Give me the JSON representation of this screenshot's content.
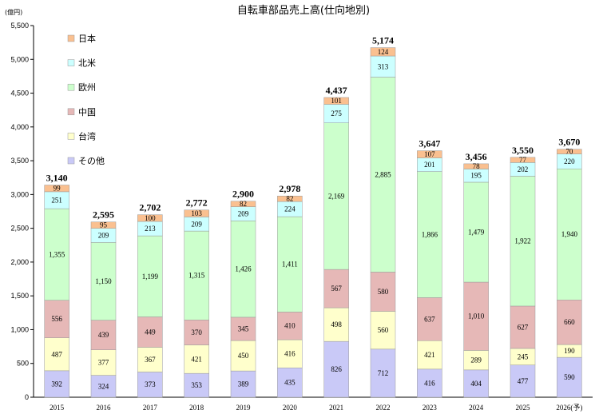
{
  "chart_data": {
    "type": "bar",
    "stacked": true,
    "title": "自転車部品売上高(仕向地別)",
    "unit": "(億円)",
    "categories": [
      "2015",
      "2016",
      "2017",
      "2018",
      "2019",
      "2020",
      "2021",
      "2022",
      "2023",
      "2024",
      "2025",
      "2026(予)"
    ],
    "ylim": [
      0,
      5500
    ],
    "yticks": [
      0,
      500,
      1000,
      1500,
      2000,
      2500,
      3000,
      3500,
      4000,
      4500,
      5000,
      5500
    ],
    "ytick_labels": [
      "0",
      "500",
      "1,000",
      "1,500",
      "2,000",
      "2,500",
      "3,000",
      "3,500",
      "4,000",
      "4,500",
      "5,000",
      "5,500"
    ],
    "legend_position": "top-left",
    "series": [
      {
        "name": "その他",
        "color": "#c9c9f7",
        "values": [
          392,
          324,
          373,
          353,
          389,
          435,
          826,
          712,
          416,
          404,
          477,
          590
        ],
        "labels": [
          "392",
          "324",
          "373",
          "353",
          "389",
          "435",
          "826",
          "712",
          "416",
          "404",
          "477",
          "590"
        ]
      },
      {
        "name": "台湾",
        "color": "#ffffcc",
        "values": [
          487,
          377,
          367,
          421,
          450,
          416,
          498,
          560,
          421,
          289,
          245,
          190
        ],
        "labels": [
          "487",
          "377",
          "367",
          "421",
          "450",
          "416",
          "498",
          "560",
          "421",
          "289",
          "245",
          "190"
        ]
      },
      {
        "name": "中国",
        "color": "#e6b8b7",
        "values": [
          556,
          439,
          449,
          370,
          345,
          410,
          567,
          580,
          637,
          1010,
          627,
          660
        ],
        "labels": [
          "556",
          "439",
          "449",
          "370",
          "345",
          "410",
          "567",
          "580",
          "637",
          "1,010",
          "627",
          "660"
        ]
      },
      {
        "name": "欧州",
        "color": "#ccffcc",
        "values": [
          1355,
          1150,
          1199,
          1315,
          1426,
          1411,
          2169,
          2885,
          1866,
          1479,
          1922,
          1940
        ],
        "labels": [
          "1,355",
          "1,150",
          "1,199",
          "1,315",
          "1,426",
          "1,411",
          "2,169",
          "2,885",
          "1,866",
          "1,479",
          "1,922",
          "1,940"
        ]
      },
      {
        "name": "北米",
        "color": "#ccffff",
        "values": [
          251,
          209,
          213,
          209,
          209,
          224,
          275,
          313,
          201,
          195,
          202,
          220
        ],
        "labels": [
          "251",
          "209",
          "213",
          "209",
          "209",
          "224",
          "275",
          "313",
          "201",
          "195",
          "202",
          "220"
        ]
      },
      {
        "name": "日本",
        "color": "#fac090",
        "values": [
          99,
          95,
          100,
          103,
          82,
          82,
          101,
          124,
          107,
          78,
          77,
          70
        ],
        "labels": [
          "99",
          "95",
          "100",
          "103",
          "82",
          "82",
          "101",
          "124",
          "107",
          "78",
          "77",
          "70"
        ]
      }
    ],
    "totals": [
      "3,140",
      "2,595",
      "2,702",
      "2,772",
      "2,900",
      "2,978",
      "4,437",
      "5,174",
      "3,647",
      "3,456",
      "3,550",
      "3,670"
    ],
    "legend_order": [
      "日本",
      "北米",
      "欧州",
      "中国",
      "台湾",
      "その他"
    ],
    "grid": false
  }
}
